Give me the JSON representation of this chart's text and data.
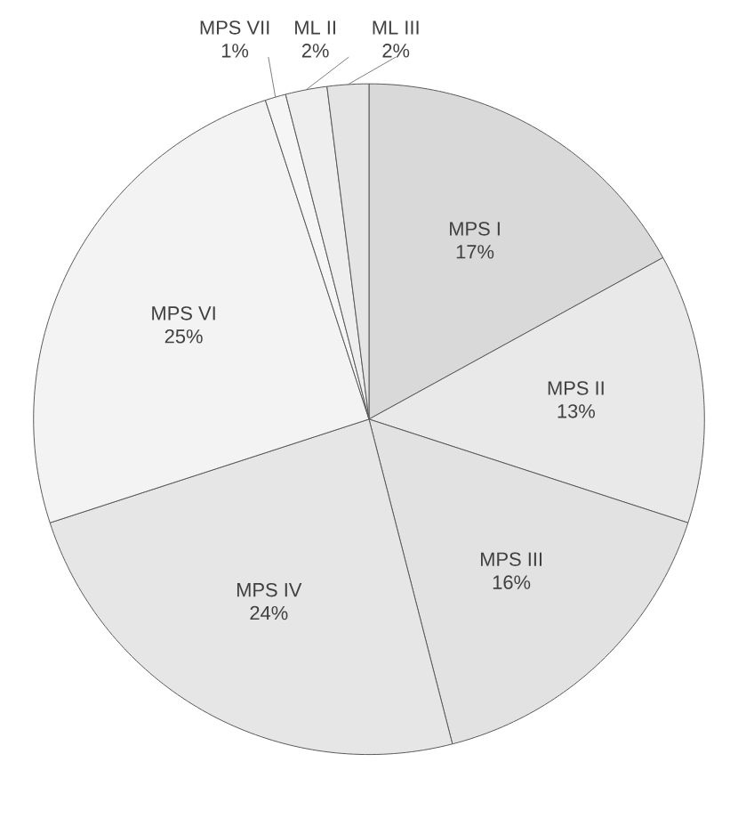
{
  "chart_data": {
    "type": "pie",
    "categories": [
      "MPS I",
      "MPS II",
      "MPS III",
      "MPS IV",
      "MPS VI",
      "MPS VII",
      "ML II",
      "ML III"
    ],
    "values": [
      17,
      13,
      16,
      24,
      25,
      1,
      2,
      2
    ],
    "value_labels": [
      "17%",
      "13%",
      "16%",
      "24%",
      "25%",
      "1%",
      "2%",
      "2%"
    ],
    "colors": [
      "#d9d9d9",
      "#e9e9e9",
      "#e2e2e2",
      "#e6e6e6",
      "#f3f3f3",
      "#f5f5f5",
      "#eeeeee",
      "#e4e4e4"
    ]
  }
}
